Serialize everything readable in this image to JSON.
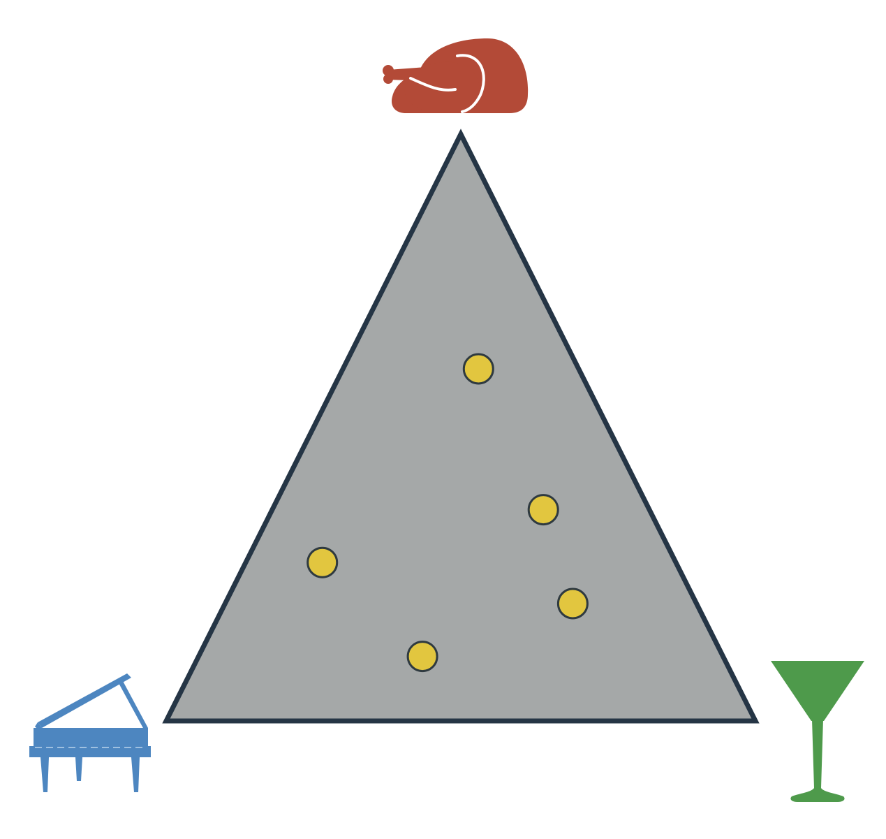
{
  "diagram": {
    "type": "ternary-simplex",
    "triangle_fill": "#a5a8a8",
    "triangle_stroke": "#253545",
    "point_fill": "#e2c63f",
    "point_stroke": "#2f3a40",
    "vertices": {
      "top": {
        "icon": "roast-turkey-icon",
        "color": "#b34a37"
      },
      "bottom_left": {
        "icon": "grand-piano-icon",
        "color": "#4d86c0"
      },
      "bottom_right": {
        "icon": "martini-glass-icon",
        "color": "#4e9a4b"
      }
    },
    "points": [
      {
        "top": 0.6,
        "bottom_left": 0.17,
        "bottom_right": 0.23
      },
      {
        "top": 0.36,
        "bottom_left": 0.18,
        "bottom_right": 0.46
      },
      {
        "top": 0.27,
        "bottom_left": 0.6,
        "bottom_right": 0.13
      },
      {
        "top": 0.2,
        "bottom_left": 0.21,
        "bottom_right": 0.59
      },
      {
        "top": 0.11,
        "bottom_left": 0.51,
        "bottom_right": 0.38
      }
    ]
  }
}
